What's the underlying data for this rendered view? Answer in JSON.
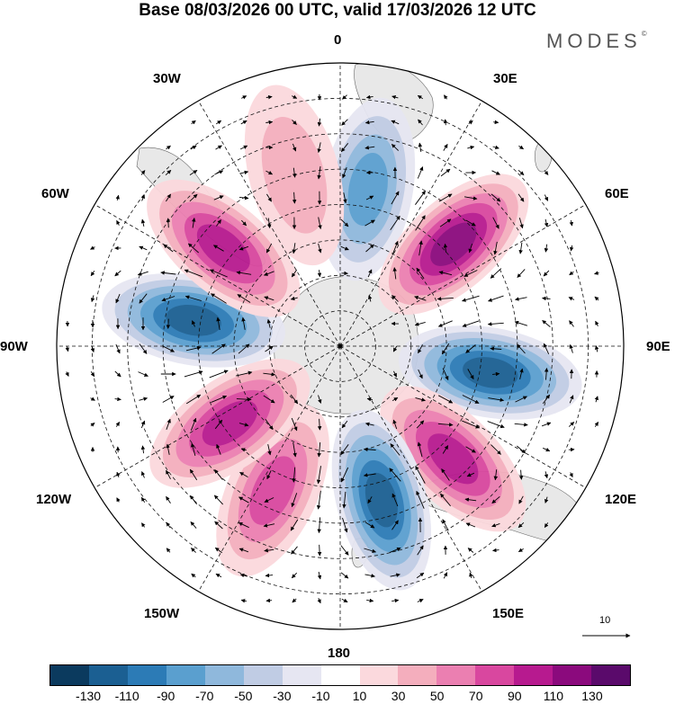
{
  "title": "Base 08/03/2026 00 UTC, valid 17/03/2026 12 UTC",
  "brand": "MODES",
  "brand_mark": "©",
  "longitude_labels": {
    "top": "0",
    "top_right": "30E",
    "right_upper": "60E",
    "right": "90E",
    "right_lower": "120E",
    "bottom_right": "150E",
    "bottom": "180",
    "bottom_left": "150W",
    "left_lower": "120W",
    "left": "90W",
    "left_upper": "60W",
    "top_left": "30W"
  },
  "colorbar": {
    "colors": [
      "#0b3a5e",
      "#1b5f92",
      "#2c7bb6",
      "#5a9fcf",
      "#8fb8dc",
      "#c0cce4",
      "#e6e6f2",
      "#ffffff",
      "#fbd9dd",
      "#f4aebd",
      "#eb7fb1",
      "#d9479f",
      "#b71a8f",
      "#8b0a7d",
      "#5a0a6b"
    ],
    "tick_labels": [
      "-130",
      "-110",
      "-90",
      "-70",
      "-50",
      "-30",
      "-10",
      "10",
      "30",
      "50",
      "70",
      "90",
      "110",
      "130"
    ]
  },
  "vector_reference": {
    "label": "10"
  },
  "map_data": {
    "projection": "south-polar-stereographic",
    "field": "anomaly",
    "anomaly_centres": [
      {
        "lon": 10,
        "lat": -45,
        "value": -80
      },
      {
        "lon": 48,
        "lat": -47,
        "value": 115
      },
      {
        "lon": 100,
        "lat": -47,
        "value": -110
      },
      {
        "lon": 135,
        "lat": -45,
        "value": 105
      },
      {
        "lon": 165,
        "lat": -45,
        "value": -120
      },
      {
        "lon": -155,
        "lat": -45,
        "value": 75
      },
      {
        "lon": -125,
        "lat": -52,
        "value": 95
      },
      {
        "lon": -80,
        "lat": -48,
        "value": -125
      },
      {
        "lon": -50,
        "lat": -47,
        "value": 90
      },
      {
        "lon": -15,
        "lat": -40,
        "value": 35
      }
    ]
  }
}
